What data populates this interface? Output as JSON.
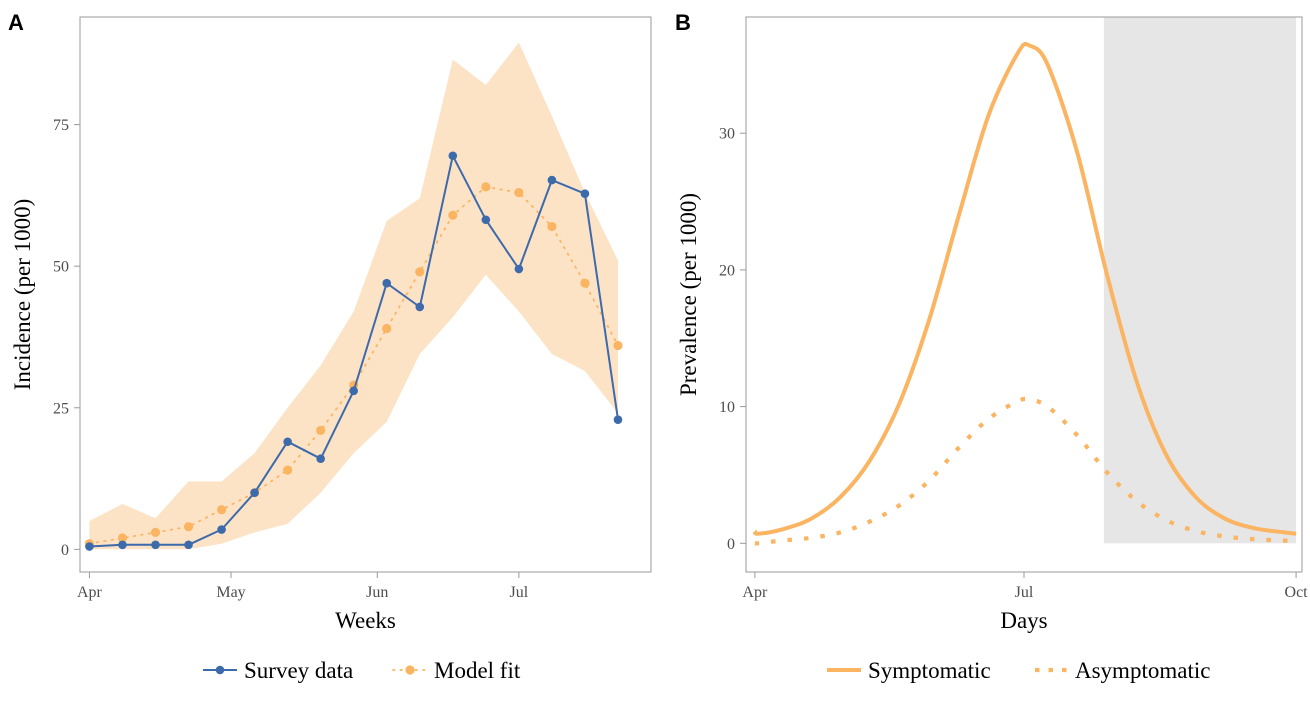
{
  "colors": {
    "survey": "#3c6aab",
    "model": "#fbb461",
    "band": "#fde3c6",
    "shade": "#e6e6e6",
    "frame": "#9a9a9a"
  },
  "legends": {
    "left": [
      "Survey data",
      "Model fit"
    ],
    "right": [
      "Symptomatic",
      "Asymptomatic"
    ]
  },
  "chart_data": [
    {
      "panel": "A",
      "type": "line",
      "xlabel": "Weeks",
      "ylabel": "Incidence (per 1000)",
      "xlim": [
        "2019-03-30",
        "2019-07-29"
      ],
      "ylim": [
        -4,
        94
      ],
      "x_ticks": [
        {
          "date": "2019-04-01",
          "label": "Apr"
        },
        {
          "date": "2019-05-01",
          "label": "May"
        },
        {
          "date": "2019-06-01",
          "label": "Jun"
        },
        {
          "date": "2019-07-01",
          "label": "Jul"
        }
      ],
      "y_ticks": [
        0,
        25,
        50,
        75
      ],
      "x": [
        "2019-04-01",
        "2019-04-08",
        "2019-04-15",
        "2019-04-22",
        "2019-04-29",
        "2019-05-06",
        "2019-05-13",
        "2019-05-20",
        "2019-05-27",
        "2019-06-03",
        "2019-06-10",
        "2019-06-17",
        "2019-06-24",
        "2019-07-01",
        "2019-07-08",
        "2019-07-15",
        "2019-07-22"
      ],
      "series": [
        {
          "name": "Survey data",
          "style": "solid-markers",
          "values": [
            0.5,
            0.8,
            0.8,
            0.8,
            3.5,
            10,
            19,
            16,
            28,
            47,
            42.8,
            69.5,
            58.2,
            49.5,
            65.2,
            62.8,
            22.9
          ]
        },
        {
          "name": "Model fit",
          "style": "dotted-markers",
          "values": [
            1,
            2,
            3,
            4,
            7,
            10,
            14,
            21,
            29,
            39,
            49,
            59,
            64,
            63,
            57,
            47,
            36
          ],
          "lower": [
            0,
            0,
            0,
            0,
            1,
            3,
            4.5,
            10,
            17,
            22.5,
            34.5,
            41,
            48.5,
            42,
            34.5,
            31.5,
            24
          ],
          "upper": [
            5,
            8,
            5.5,
            12,
            12,
            17,
            25,
            32.5,
            42,
            58,
            62,
            86.5,
            82,
            89.5,
            76.5,
            63,
            51
          ]
        }
      ]
    },
    {
      "panel": "B",
      "type": "line",
      "xlabel": "Days",
      "ylabel": "Prevalence (per 1000)",
      "xlim": [
        "2019-03-29",
        "2019-10-03"
      ],
      "ylim": [
        -2.1,
        38.5
      ],
      "x_ticks": [
        {
          "date": "2019-04-01",
          "label": "Apr"
        },
        {
          "date": "2019-07-01",
          "label": "Jul"
        },
        {
          "date": "2019-10-01",
          "label": "Oct"
        }
      ],
      "y_ticks": [
        0,
        10,
        20,
        30
      ],
      "shaded_region": {
        "from": "2019-07-28",
        "to": "2019-10-01"
      },
      "x": [
        "2019-04-01",
        "2019-04-02",
        "2019-04-10",
        "2019-04-20",
        "2019-04-30",
        "2019-05-10",
        "2019-05-20",
        "2019-05-30",
        "2019-06-09",
        "2019-06-19",
        "2019-06-29",
        "2019-07-03",
        "2019-07-09",
        "2019-07-19",
        "2019-07-29",
        "2019-08-08",
        "2019-08-18",
        "2019-08-28",
        "2019-09-07",
        "2019-09-17",
        "2019-09-27",
        "2019-10-01"
      ],
      "series": [
        {
          "name": "Symptomatic",
          "style": "solid",
          "values": [
            0.9,
            0.7,
            1.0,
            1.8,
            3.4,
            6.1,
            10.3,
            16.4,
            24.0,
            31.3,
            35.9,
            36.4,
            35.0,
            28.6,
            19.7,
            11.9,
            6.5,
            3.4,
            1.8,
            1.1,
            0.8,
            0.7
          ]
        },
        {
          "name": "Asymptomatic",
          "style": "dotted",
          "values": [
            0.0,
            0.0,
            0.2,
            0.4,
            0.8,
            1.6,
            2.8,
            4.6,
            7.0,
            9.1,
            10.4,
            10.5,
            10.0,
            7.9,
            5.2,
            3.1,
            1.7,
            0.9,
            0.5,
            0.3,
            0.2,
            0.2
          ]
        }
      ]
    }
  ]
}
